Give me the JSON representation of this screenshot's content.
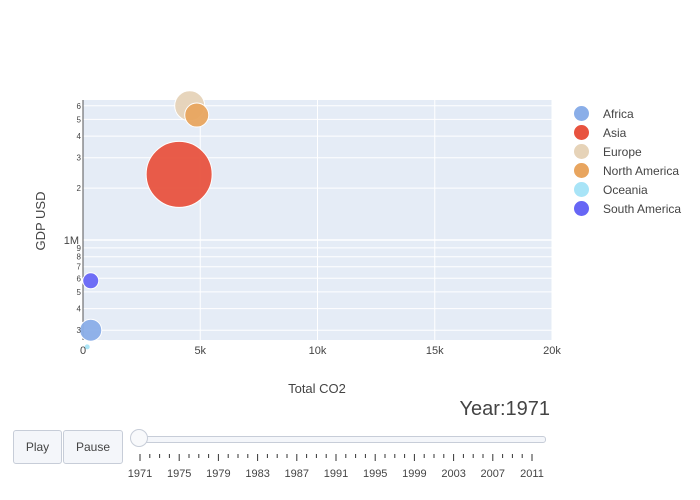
{
  "chart_data": {
    "type": "scatter",
    "xlabel": "Total CO2",
    "ylabel": "GDP USD",
    "xlim": [
      0,
      20000
    ],
    "y_scale": "log",
    "x_ticks": [
      {
        "value": 0,
        "label": "0"
      },
      {
        "value": 5000,
        "label": "5k"
      },
      {
        "value": 10000,
        "label": "10k"
      },
      {
        "value": 15000,
        "label": "15k"
      },
      {
        "value": 20000,
        "label": "20k"
      }
    ],
    "y_major_tick": {
      "value": 1000000,
      "label": "1M"
    },
    "y_minor_labels": [
      "2",
      "3",
      "4",
      "5",
      "6",
      "7",
      "8",
      "9"
    ],
    "grid": true,
    "legend_position": "right",
    "series": [
      {
        "name": "Africa",
        "color": "#8aaee8",
        "points": [
          {
            "x": 330,
            "y": 300000,
            "size": 11
          }
        ]
      },
      {
        "name": "Asia",
        "color": "#e8533f",
        "points": [
          {
            "x": 4100,
            "y": 2400000,
            "size": 33
          }
        ]
      },
      {
        "name": "Europe",
        "color": "#e6d3b8",
        "points": [
          {
            "x": 4550,
            "y": 6000000,
            "size": 15
          }
        ]
      },
      {
        "name": "North America",
        "color": "#e8a55f",
        "points": [
          {
            "x": 4850,
            "y": 5300000,
            "size": 12
          }
        ]
      },
      {
        "name": "Oceania",
        "color": "#a8e4f7",
        "points": [
          {
            "x": 180,
            "y": 240000,
            "size": 3
          }
        ]
      },
      {
        "name": "South America",
        "color": "#6766f5",
        "points": [
          {
            "x": 330,
            "y": 580000,
            "size": 8
          }
        ]
      }
    ]
  },
  "animation": {
    "current_label": "Year:1971",
    "play_label": "Play",
    "pause_label": "Pause",
    "slider_value": 1971,
    "slider_labels": [
      "1971",
      "1975",
      "1979",
      "1983",
      "1987",
      "1991",
      "1995",
      "1999",
      "2003",
      "2007",
      "2011"
    ]
  }
}
